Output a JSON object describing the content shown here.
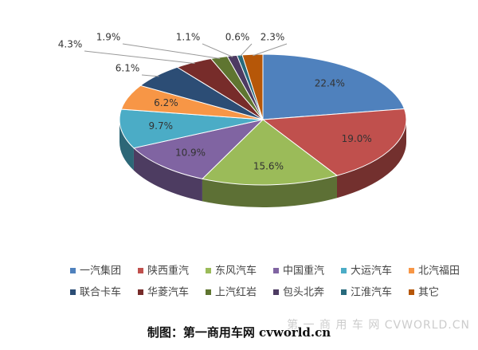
{
  "chart_data": {
    "type": "pie",
    "categories": [
      "一汽集团",
      "陕西重汽",
      "东风汽车",
      "中国重汽",
      "大运汽车",
      "北汽福田",
      "联合卡车",
      "华菱汽车",
      "上汽红岩",
      "包头北奔",
      "江淮汽车",
      "其它"
    ],
    "values": [
      22.4,
      19.0,
      15.6,
      10.9,
      9.7,
      6.2,
      6.1,
      4.3,
      1.9,
      1.1,
      0.6,
      2.3
    ],
    "value_labels": [
      "22.4%",
      "19.0%",
      "15.6%",
      "10.9%",
      "9.7%",
      "6.2%",
      "6.1%",
      "4.3%",
      "1.9%",
      "1.1%",
      "0.6%",
      "2.3%"
    ],
    "colors": [
      "#4f81bd",
      "#c0504d",
      "#9bbb59",
      "#8064a2",
      "#4bacc6",
      "#f79646",
      "#2c4d75",
      "#772c2a",
      "#5f7530",
      "#4d3b62",
      "#276a7c",
      "#b65708"
    ],
    "source": "制图：第一商用车网 cvworld.cn",
    "watermark": "第 一 商 用 车 网 CVWORLD.CN"
  }
}
